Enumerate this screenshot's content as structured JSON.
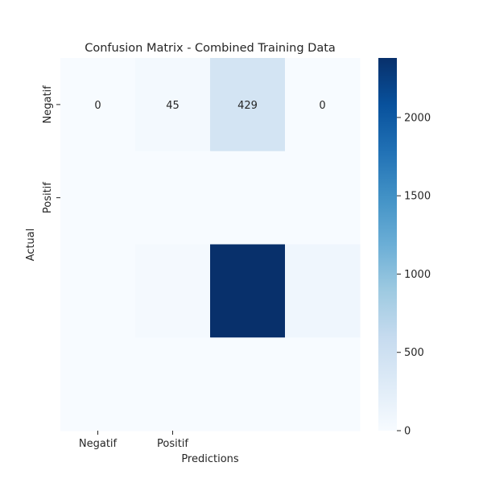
{
  "chart_data": {
    "type": "heatmap",
    "title": "Confusion Matrix - Combined Training Data",
    "xlabel": "Predictions",
    "ylabel": "Actual",
    "x_tick_labels": [
      "Negatif",
      "Positif"
    ],
    "y_tick_labels": [
      "Negatif",
      "Positif"
    ],
    "n_cols": 4,
    "n_rows": 4,
    "values": [
      [
        0,
        45,
        429,
        0
      ],
      [
        0,
        0,
        0,
        0
      ],
      [
        0,
        30,
        2380,
        90
      ],
      [
        0,
        0,
        0,
        0
      ]
    ],
    "annotations": [
      [
        "0",
        "45",
        "429",
        "0"
      ]
    ],
    "colormap": "Blues",
    "colors": [
      "#f7fbff",
      "#deebf7",
      "#c6dbef",
      "#9ecae1",
      "#6baed6",
      "#4292c6",
      "#2171b5",
      "#08519c",
      "#08306b"
    ],
    "vmin": 0,
    "vmax": 2380,
    "colorbar_ticks": [
      0,
      500,
      1000,
      1500,
      2000
    ],
    "grid": false
  }
}
